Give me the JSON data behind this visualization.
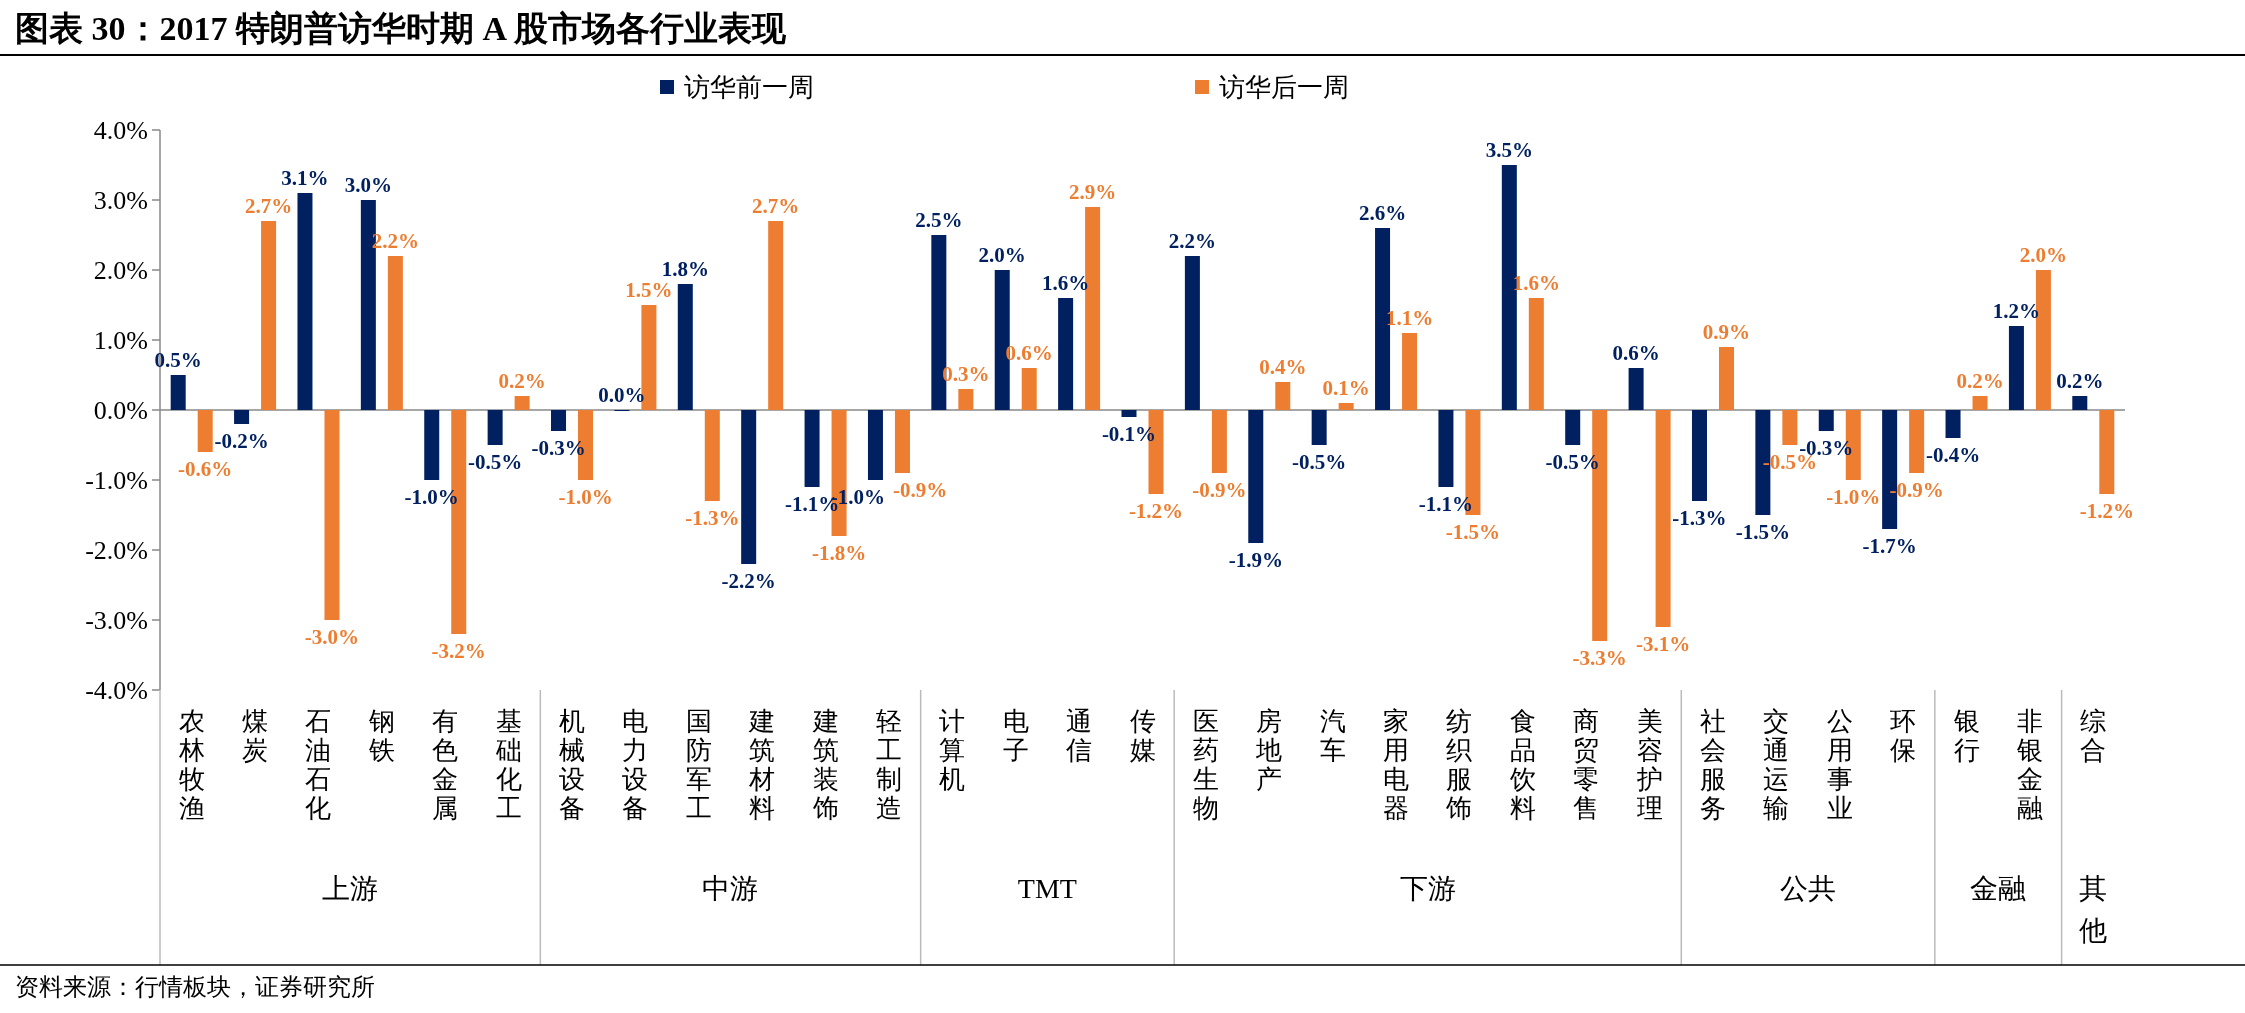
{
  "chart_data": {
    "type": "bar",
    "title": "图表 30：2017 特朗普访华时期 A 股市场各行业表现",
    "categories": [
      "农林牧渔",
      "煤炭",
      "石油石化",
      "钢铁",
      "有色金属",
      "基础化工",
      "机械设备",
      "电力设备",
      "国防军工",
      "建筑材料",
      "建筑装饰",
      "轻工制造",
      "计算机",
      "电子",
      "通信",
      "传媒",
      "医药生物",
      "房地产",
      "汽车",
      "家用电器",
      "纺织服饰",
      "食品饮料",
      "商贸零售",
      "美容护理",
      "社会服务",
      "交通运输",
      "公用事业",
      "环保",
      "银行",
      "非银金融",
      "综合"
    ],
    "series": [
      {
        "name": "访华前一周",
        "color": "#002060",
        "values": [
          0.5,
          -0.2,
          3.1,
          3.0,
          -1.0,
          -0.5,
          -0.3,
          0.0,
          1.8,
          -2.2,
          -1.1,
          -1.0,
          2.5,
          2.0,
          1.6,
          -0.1,
          2.2,
          -1.9,
          -0.5,
          2.6,
          -1.1,
          3.5,
          -0.5,
          0.6,
          -1.3,
          -1.5,
          -0.3,
          -1.7,
          -0.4,
          1.2,
          0.2
        ],
        "value_labels": [
          "0.5%",
          "-0.2%",
          "3.1%",
          "3.0%",
          "-1.0%",
          "-0.5%",
          "-0.3%",
          "0.0%",
          "1.8%",
          "-2.2%",
          "-1.1%",
          "-1.0%",
          "2.5%",
          "2.0%",
          "1.6%",
          "-0.1%",
          "2.2%",
          "-1.9%",
          "-0.5%",
          "2.6%",
          "-1.1%",
          "3.5%",
          "-0.5%",
          "0.6%",
          "-1.3%",
          "-1.5%",
          "-0.3%",
          "-1.7%",
          "-0.4%",
          "1.2%",
          "0.2%"
        ]
      },
      {
        "name": "访华后一周",
        "color": "#ed7d31",
        "values": [
          -0.6,
          2.7,
          -3.0,
          2.2,
          -3.2,
          0.2,
          -1.0,
          1.5,
          -1.3,
          2.7,
          -1.8,
          -0.9,
          0.3,
          0.6,
          2.9,
          -1.2,
          -0.9,
          0.4,
          0.1,
          1.1,
          -1.5,
          1.6,
          -3.3,
          -3.1,
          0.9,
          -0.5,
          -1.0,
          -0.9,
          0.2,
          2.0,
          -1.2
        ],
        "value_labels": [
          "-0.6%",
          "2.7%",
          "-3.0%",
          "2.2%",
          "-3.2%",
          "0.2%",
          "-1.0%",
          "1.5%",
          "-1.3%",
          "2.7%",
          "-1.8%",
          "-0.9%",
          "0.3%",
          "0.6%",
          "2.9%",
          "-1.2%",
          "-0.9%",
          "0.4%",
          "0.1%",
          "1.1%",
          "-1.5%",
          "1.6%",
          "-3.3%",
          "-3.1%",
          "0.9%",
          "-0.5%",
          "-1.0%",
          "-0.9%",
          "0.2%",
          "2.0%",
          "-1.2%"
        ]
      }
    ],
    "ylim": [
      -4.0,
      4.0
    ],
    "yticks": [
      {
        "value": -4.0,
        "label": "-4.0%"
      },
      {
        "value": -3.0,
        "label": "-3.0%"
      },
      {
        "value": -2.0,
        "label": "-2.0%"
      },
      {
        "value": -1.0,
        "label": "-1.0%"
      },
      {
        "value": 0.0,
        "label": "0.0%"
      },
      {
        "value": 1.0,
        "label": "1.0%"
      },
      {
        "value": 2.0,
        "label": "2.0%"
      },
      {
        "value": 3.0,
        "label": "3.0%"
      },
      {
        "value": 4.0,
        "label": "4.0%"
      }
    ],
    "legend": "top",
    "annotations": [
      "上游",
      "中游",
      "TMT",
      "下游",
      "公共",
      "金融",
      "其他",
      "资料来源：行情板块，证券研究所"
    ]
  }
}
